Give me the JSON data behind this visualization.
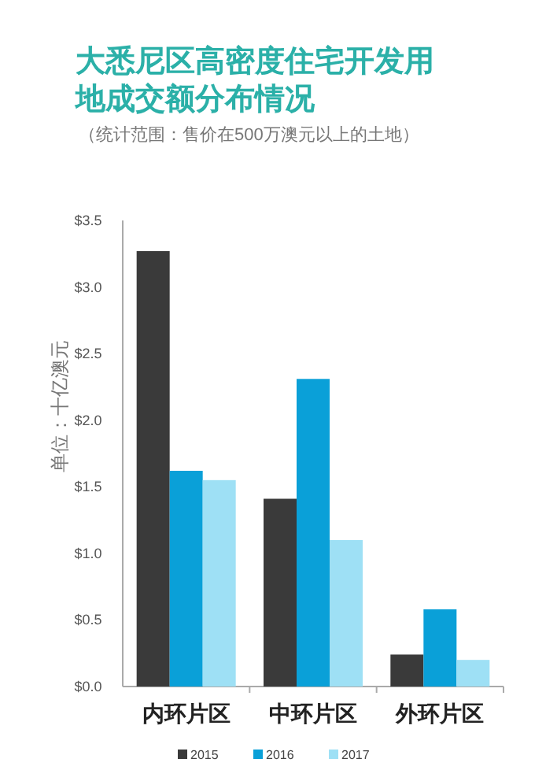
{
  "chart_data": {
    "type": "bar",
    "title": "大悉尼区高密度住宅开发用地成交额分布情况",
    "subtitle": "（统计范围：售价在500万澳元以上的土地）",
    "ylabel": "单位：十亿澳元",
    "categories": [
      "内环片区",
      "中环片区",
      "外环片区"
    ],
    "series": [
      {
        "name": "2015",
        "color": "#3a3a3a",
        "values": [
          3.27,
          1.41,
          0.24
        ]
      },
      {
        "name": "2016",
        "color": "#0aa0d8",
        "values": [
          1.62,
          2.31,
          0.58
        ]
      },
      {
        "name": "2017",
        "color": "#9ee0f5",
        "values": [
          1.55,
          1.1,
          0.2
        ]
      }
    ],
    "ylim": [
      0,
      3.5
    ],
    "yticks": [
      {
        "value": 0,
        "label": "$0.0"
      },
      {
        "value": 0.5,
        "label": "$0.5"
      },
      {
        "value": 1,
        "label": "$1.0"
      },
      {
        "value": 1.5,
        "label": "$1.5"
      },
      {
        "value": 2,
        "label": "$2.0"
      },
      {
        "value": 2.5,
        "label": "$2.5"
      },
      {
        "value": 3,
        "label": "$3.0"
      },
      {
        "value": 3.5,
        "label": "$3.5"
      }
    ],
    "grid": false,
    "legend": "bottom"
  }
}
